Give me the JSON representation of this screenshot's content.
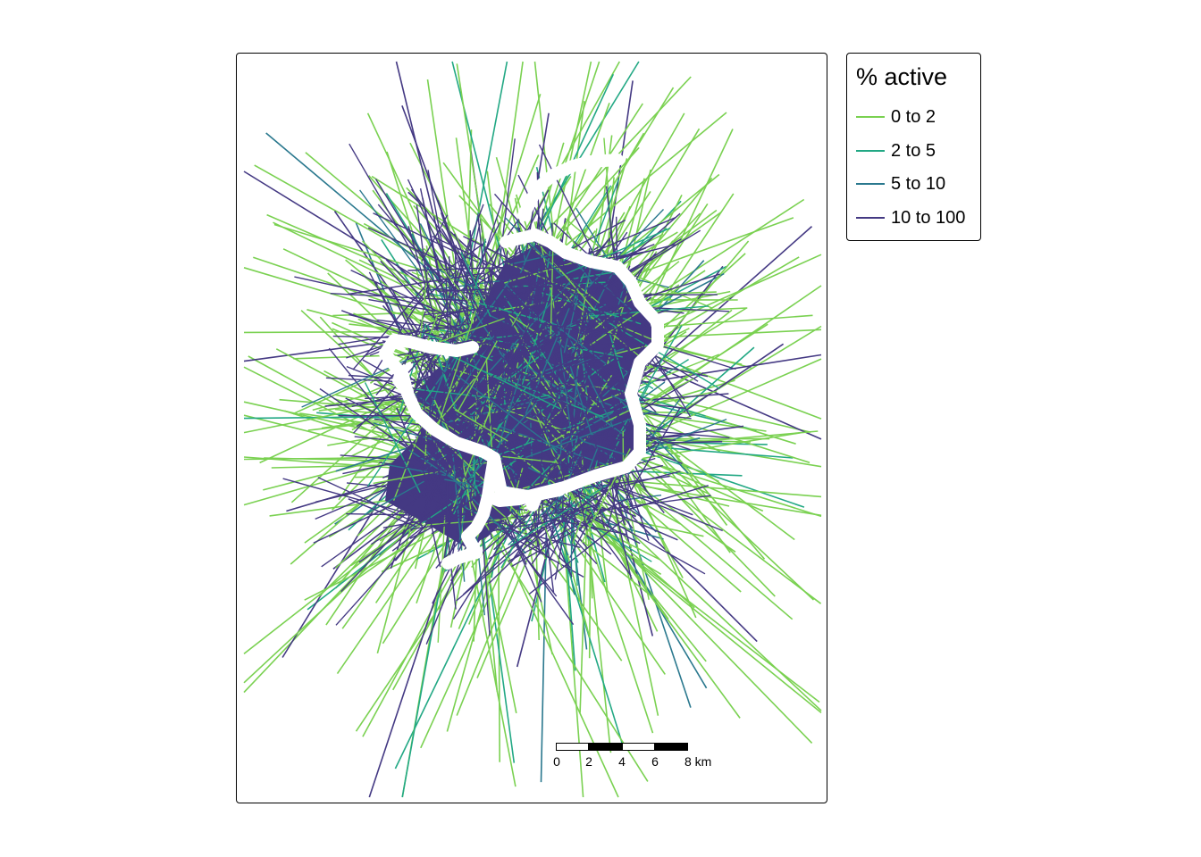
{
  "legend": {
    "title": "% active",
    "items": [
      {
        "label": "0 to 2",
        "color": "#7AD151"
      },
      {
        "label": "2 to 5",
        "color": "#22A884"
      },
      {
        "label": "5 to 10",
        "color": "#2A788E"
      },
      {
        "label": "10 to 100",
        "color": "#443983"
      }
    ]
  },
  "scale_bar": {
    "ticks": [
      "0",
      "2",
      "4",
      "6",
      "8 km"
    ]
  },
  "colors": {
    "route_network": "#ffffff",
    "core_fill": "#443983",
    "frame": "#000000"
  },
  "map": {
    "layer": "desire lines",
    "classified_by": "% active",
    "overlay": "white route lines"
  }
}
